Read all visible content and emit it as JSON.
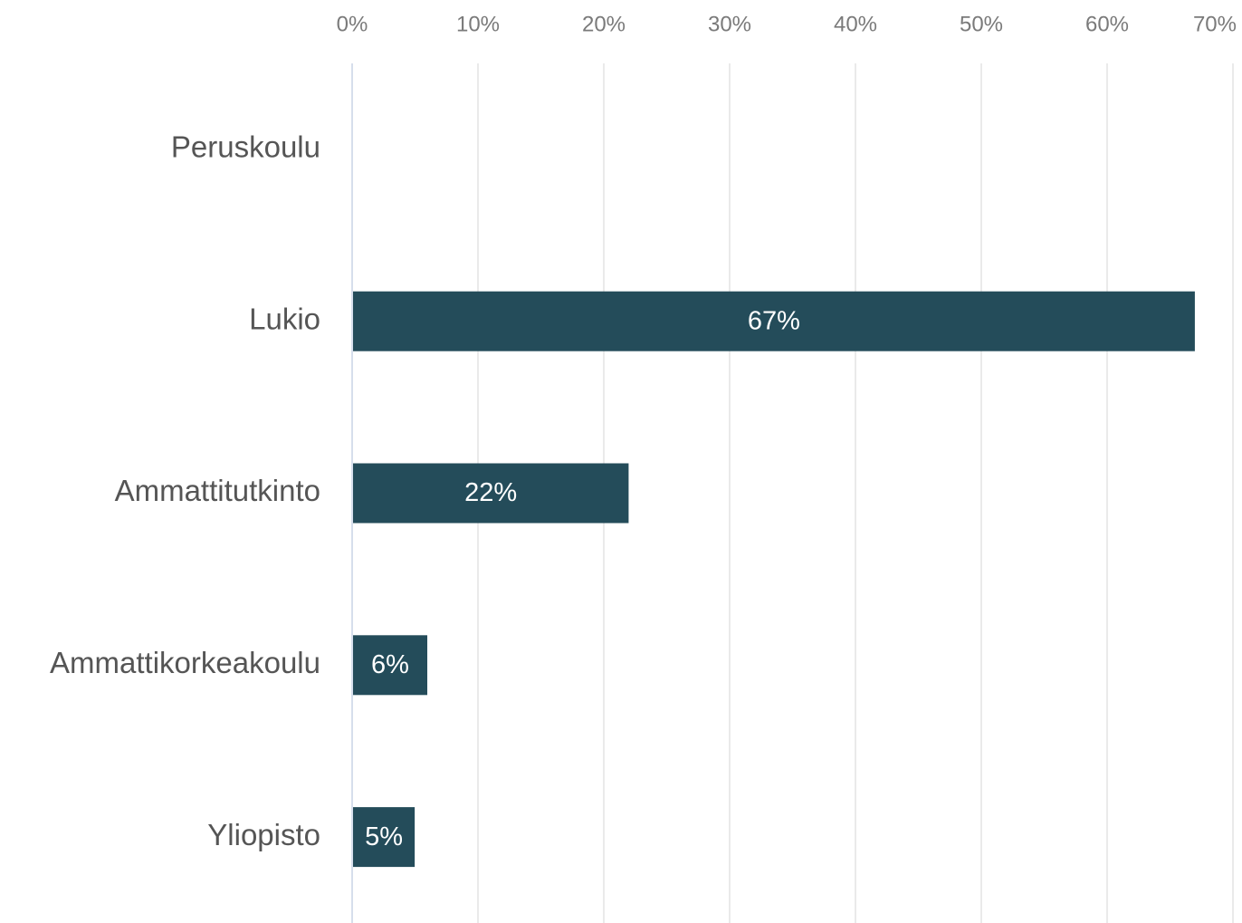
{
  "chart_data": {
    "type": "barh",
    "categories": [
      "Peruskoulu",
      "Lukio",
      "Ammattitutkinto",
      "Ammattikorkeakoulu",
      "Yliopisto"
    ],
    "values": [
      0,
      66.9,
      21.9,
      5.9,
      4.9
    ],
    "value_labels": [
      null,
      "67%",
      "22%",
      "6%",
      "5%"
    ],
    "color": "#244c5a",
    "xlim": [
      0,
      70
    ],
    "xticks": [
      {
        "value": 0,
        "label": "0%"
      },
      {
        "value": 10,
        "label": "10%"
      },
      {
        "value": 20,
        "label": "20%"
      },
      {
        "value": 30,
        "label": "30%"
      },
      {
        "value": 40,
        "label": "40%"
      },
      {
        "value": 50,
        "label": "50%"
      },
      {
        "value": 60,
        "label": "60%"
      },
      {
        "value": 70,
        "label": "70%"
      }
    ],
    "grid": true
  }
}
